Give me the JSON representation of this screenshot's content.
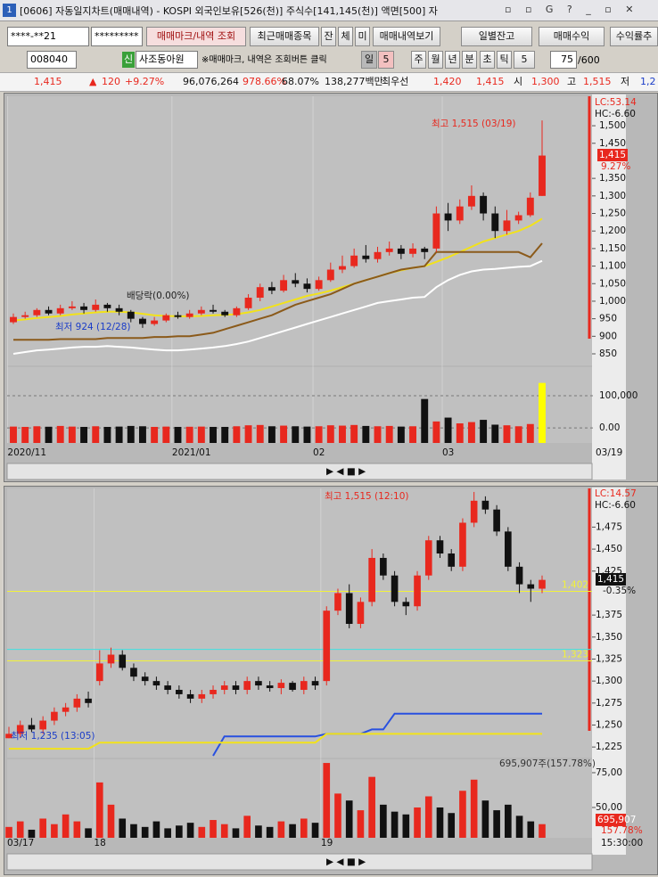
{
  "window": {
    "title": "[0606] 자동일지차트(매매내역) - KOSPI 외국인보유[526(천)] 주식수[141,145(천)] 액면[500] 자"
  },
  "toolbar": {
    "account": "****-**21",
    "password": "*********",
    "buttons": [
      "매매마크/내역 조회",
      "최근매매종목",
      "잔",
      "체",
      "미",
      "매매내역보기",
      "일별잔고",
      "매매수익",
      "수익률추"
    ],
    "code": "008040",
    "credit": "신",
    "name": "사조동아원",
    "note": "※매매마크, 내역은 조회버튼 클릭",
    "periods": [
      "일",
      "5",
      "주",
      "월",
      "년",
      "분",
      "초",
      "틱",
      "5"
    ],
    "count": "75",
    "max": "/600"
  },
  "quote": [
    "1,415",
    "▲",
    "120",
    "+9.27%",
    "96,076,264",
    "978.66%",
    "68.07%",
    "138,277백만",
    "최우선",
    "1,420",
    "1,415",
    "시",
    "1,300",
    "고",
    "1,515",
    "저",
    "1,2"
  ],
  "chart_data": [
    {
      "type": "candlestick",
      "up_color": "#e8281e",
      "down_color": "#111111",
      "highlight_color": "#ffff00",
      "categories": [
        "2020/11",
        null,
        null,
        null,
        null,
        null,
        null,
        null,
        null,
        null,
        null,
        null,
        null,
        null,
        "2021/01",
        null,
        null,
        null,
        null,
        null,
        null,
        null,
        null,
        null,
        null,
        null,
        "02",
        null,
        null,
        null,
        null,
        null,
        null,
        null,
        null,
        null,
        null,
        "03",
        null,
        null,
        null,
        null,
        null,
        null,
        null,
        null
      ],
      "open": [
        940,
        955,
        960,
        975,
        965,
        980,
        985,
        975,
        990,
        980,
        970,
        950,
        935,
        945,
        960,
        955,
        965,
        975,
        970,
        960,
        980,
        1010,
        1040,
        1030,
        1060,
        1050,
        1035,
        1060,
        1090,
        1100,
        1130,
        1120,
        1140,
        1150,
        1135,
        1150,
        1150,
        1250,
        1230,
        1270,
        1300,
        1250,
        1200,
        1230,
        1245,
        1300
      ],
      "high": [
        965,
        970,
        980,
        985,
        990,
        1000,
        995,
        1005,
        995,
        990,
        975,
        955,
        955,
        965,
        970,
        975,
        985,
        990,
        975,
        985,
        1020,
        1050,
        1055,
        1075,
        1080,
        1065,
        1070,
        1110,
        1130,
        1150,
        1160,
        1155,
        1170,
        1160,
        1165,
        1155,
        1270,
        1280,
        1290,
        1330,
        1310,
        1270,
        1260,
        1255,
        1310,
        1515
      ],
      "low": [
        935,
        950,
        955,
        960,
        960,
        975,
        965,
        970,
        970,
        960,
        940,
        924,
        930,
        940,
        950,
        950,
        960,
        965,
        955,
        955,
        975,
        1000,
        1020,
        1025,
        1040,
        1025,
        1030,
        1055,
        1080,
        1095,
        1110,
        1110,
        1130,
        1120,
        1125,
        1120,
        1140,
        1200,
        1220,
        1260,
        1230,
        1180,
        1190,
        1220,
        1240,
        1300
      ],
      "close": [
        955,
        960,
        975,
        965,
        980,
        985,
        975,
        990,
        980,
        970,
        950,
        935,
        945,
        960,
        955,
        965,
        975,
        970,
        960,
        980,
        1010,
        1040,
        1030,
        1060,
        1050,
        1035,
        1060,
        1090,
        1100,
        1130,
        1120,
        1140,
        1150,
        1135,
        1150,
        1140,
        1250,
        1230,
        1270,
        1300,
        1250,
        1200,
        1230,
        1245,
        1295,
        1415
      ],
      "volume": [
        4000,
        3000,
        5000,
        3500,
        6000,
        4000,
        3000,
        5000,
        3000,
        4000,
        6000,
        5000,
        3000,
        4000,
        3000,
        3500,
        4000,
        3000,
        3000,
        5000,
        8000,
        9000,
        5000,
        7000,
        5000,
        4000,
        5000,
        8000,
        7000,
        9000,
        6000,
        5000,
        6000,
        4000,
        5000,
        90000,
        20000,
        32000,
        14000,
        18000,
        25000,
        10000,
        8000,
        5000,
        12000,
        140000
      ],
      "series": [
        {
          "color": "#f2e21a",
          "values": [
            945,
            948,
            952,
            955,
            958,
            962,
            965,
            968,
            970,
            970,
            968,
            964,
            960,
            958,
            957,
            957,
            958,
            960,
            961,
            963,
            968,
            975,
            985,
            995,
            1005,
            1015,
            1022,
            1030,
            1040,
            1050,
            1060,
            1070,
            1080,
            1088,
            1095,
            1100,
            1112,
            1125,
            1140,
            1155,
            1170,
            1180,
            1190,
            1200,
            1215,
            1235
          ]
        },
        {
          "color": "#8b5a1a",
          "values": [
            890,
            890,
            890,
            890,
            892,
            892,
            892,
            892,
            895,
            895,
            895,
            895,
            898,
            898,
            900,
            900,
            905,
            910,
            920,
            930,
            940,
            950,
            960,
            975,
            990,
            1000,
            1010,
            1020,
            1035,
            1050,
            1060,
            1070,
            1080,
            1090,
            1095,
            1100,
            1140,
            1140,
            1140,
            1140,
            1140,
            1140,
            1140,
            1140,
            1125,
            1165
          ]
        },
        {
          "color": "#ffffff",
          "values": [
            850,
            855,
            860,
            862,
            865,
            868,
            870,
            870,
            872,
            870,
            868,
            865,
            862,
            860,
            860,
            862,
            865,
            868,
            872,
            878,
            885,
            895,
            905,
            915,
            925,
            935,
            945,
            955,
            965,
            975,
            985,
            995,
            1000,
            1005,
            1010,
            1012,
            1040,
            1060,
            1075,
            1085,
            1090,
            1092,
            1095,
            1098,
            1100,
            1115
          ]
        }
      ],
      "ylim": [
        817,
        1584
      ],
      "yticks": [
        {
          "value": 1500,
          "label": "1,500"
        },
        {
          "value": 1450,
          "label": "1,450"
        },
        {
          "value": 1350,
          "label": "1,350"
        },
        {
          "value": 1300,
          "label": "1,300"
        },
        {
          "value": 1250,
          "label": "1,250"
        },
        {
          "value": 1200,
          "label": "1,200"
        },
        {
          "value": 1150,
          "label": "1,150"
        },
        {
          "value": 1100,
          "label": "1,100"
        },
        {
          "value": 1050,
          "label": "1,050"
        },
        {
          "value": 1000,
          "label": "1,000"
        },
        950,
        900,
        850
      ],
      "vol_ylim": [
        -47000,
        189000
      ],
      "vol_yticks": [
        {
          "value": 100000,
          "label": "100,000"
        },
        {
          "value": 0,
          "label": "0.00"
        }
      ],
      "vol_grid": true,
      "levels": [],
      "annotations": [
        "최고 1,515 (03/19)",
        "배당락(0.00%)",
        "최저 924 (12/28)",
        "LC:53.14",
        "HC:-6.60",
        "1,415",
        "9.27%",
        "03/19"
      ]
    },
    {
      "type": "candlestick",
      "up_color": "#e8281e",
      "down_color": "#111111",
      "highlight_color": "#e8281e",
      "categories": [
        "03/17",
        null,
        null,
        null,
        null,
        null,
        null,
        null,
        "18",
        null,
        null,
        null,
        null,
        null,
        null,
        null,
        null,
        null,
        null,
        null,
        null,
        null,
        null,
        null,
        null,
        null,
        null,
        null,
        "19",
        null,
        null,
        null,
        null,
        null,
        null,
        null,
        null,
        null,
        null,
        null,
        null,
        null,
        null,
        null,
        null,
        null,
        null,
        null
      ],
      "open": [
        1235,
        1240,
        1250,
        1245,
        1255,
        1265,
        1270,
        1280,
        1300,
        1320,
        1330,
        1315,
        1305,
        1300,
        1295,
        1290,
        1285,
        1280,
        1285,
        1290,
        1295,
        1290,
        1300,
        1295,
        1292,
        1298,
        1290,
        1300,
        1300,
        1380,
        1400,
        1365,
        1390,
        1440,
        1420,
        1390,
        1385,
        1420,
        1460,
        1445,
        1430,
        1480,
        1505,
        1495,
        1470,
        1430,
        1410,
        1405
      ],
      "high": [
        1248,
        1255,
        1258,
        1260,
        1270,
        1275,
        1285,
        1288,
        1335,
        1338,
        1335,
        1320,
        1310,
        1305,
        1300,
        1295,
        1290,
        1290,
        1295,
        1300,
        1300,
        1305,
        1305,
        1300,
        1302,
        1300,
        1305,
        1305,
        1385,
        1405,
        1410,
        1395,
        1450,
        1445,
        1425,
        1395,
        1425,
        1465,
        1465,
        1450,
        1485,
        1515,
        1510,
        1500,
        1475,
        1435,
        1415,
        1420
      ],
      "low": [
        1235,
        1236,
        1242,
        1240,
        1250,
        1260,
        1265,
        1270,
        1295,
        1315,
        1312,
        1300,
        1295,
        1290,
        1285,
        1280,
        1275,
        1275,
        1280,
        1285,
        1285,
        1285,
        1290,
        1288,
        1285,
        1288,
        1285,
        1290,
        1295,
        1375,
        1360,
        1360,
        1385,
        1415,
        1385,
        1375,
        1380,
        1415,
        1440,
        1425,
        1425,
        1475,
        1490,
        1465,
        1425,
        1400,
        1390,
        1400
      ],
      "close": [
        1240,
        1250,
        1245,
        1255,
        1265,
        1270,
        1280,
        1275,
        1320,
        1330,
        1315,
        1305,
        1300,
        1295,
        1290,
        1285,
        1280,
        1285,
        1290,
        1295,
        1290,
        1300,
        1295,
        1292,
        1298,
        1290,
        1300,
        1295,
        1380,
        1400,
        1365,
        1390,
        1440,
        1420,
        1390,
        1385,
        1420,
        1460,
        1445,
        1430,
        1480,
        1505,
        1495,
        1470,
        1430,
        1410,
        1405,
        1415
      ],
      "volume": [
        36000,
        40000,
        34000,
        42000,
        38000,
        45000,
        40000,
        35000,
        68000,
        52000,
        42000,
        38000,
        36000,
        40000,
        35000,
        37000,
        39000,
        36000,
        41000,
        38000,
        35000,
        44000,
        37000,
        36000,
        40000,
        38000,
        42000,
        39000,
        82000,
        60000,
        55000,
        48000,
        72000,
        52000,
        47000,
        45000,
        50000,
        58000,
        50000,
        46000,
        62000,
        70000,
        55000,
        48000,
        52000,
        44000,
        40000,
        38000
      ],
      "series": [
        {
          "color": "#2850e0",
          "values": [
            null,
            null,
            null,
            null,
            null,
            null,
            null,
            null,
            null,
            null,
            null,
            null,
            null,
            null,
            null,
            null,
            null,
            null,
            1215,
            1237,
            1237,
            1237,
            1237,
            1237,
            1237,
            1237,
            1237,
            1237,
            1240,
            1240,
            1240,
            1240,
            1245,
            1245,
            1263,
            1263,
            1263,
            1263,
            1263,
            1263,
            1263,
            1263,
            1263,
            1263,
            1263,
            1263,
            1263,
            1263
          ]
        },
        {
          "color": "#f2e21a",
          "values": [
            1223,
            1223,
            1223,
            1223,
            1223,
            1223,
            1223,
            1223,
            1230,
            1230,
            1230,
            1230,
            1230,
            1230,
            1230,
            1230,
            1230,
            1230,
            1230,
            1230,
            1230,
            1230,
            1230,
            1230,
            1230,
            1230,
            1230,
            1230,
            1240,
            1240,
            1240,
            1240,
            1240,
            1240,
            1240,
            1240,
            1240,
            1240,
            1240,
            1240,
            1240,
            1240,
            1240,
            1240,
            1240,
            1240,
            1240,
            1240
          ]
        }
      ],
      "ylim": [
        1213,
        1519
      ],
      "yticks": [
        {
          "value": 1475,
          "label": "1,475"
        },
        {
          "value": 1450,
          "label": "1,450"
        },
        {
          "value": 1425,
          "label": "1,425"
        },
        {
          "value": 1375,
          "label": "1,375"
        },
        {
          "value": 1350,
          "label": "1,350"
        },
        {
          "value": 1325,
          "label": "1,325"
        },
        {
          "value": 1300,
          "label": "1,300"
        },
        {
          "value": 1275,
          "label": "1,275"
        },
        {
          "value": 1250,
          "label": "1,250"
        },
        {
          "value": 1225,
          "label": "1,225"
        }
      ],
      "vol_ylim": [
        28200,
        84600
      ],
      "vol_yticks": [
        {
          "value": 75000,
          "label": "75,00"
        },
        {
          "value": 50000,
          "label": "50,00"
        }
      ],
      "vol_grid": false,
      "levels": [
        {
          "value": 1402,
          "label": "1,402",
          "color": "#f2f23a"
        },
        {
          "value": 1336,
          "color": "#40e0e0"
        },
        {
          "value": 1323,
          "label": "1,323",
          "color": "#f2f23a"
        }
      ],
      "annotations": [
        "최고 1,515 (12:10)",
        "최저 1,235 (13:05)",
        "LC:14.57",
        "HC:-6.60",
        "1,415",
        "-0.35%",
        "695,907주(157.78%)",
        "695,907",
        "157.78%",
        "15:30:00"
      ]
    }
  ]
}
